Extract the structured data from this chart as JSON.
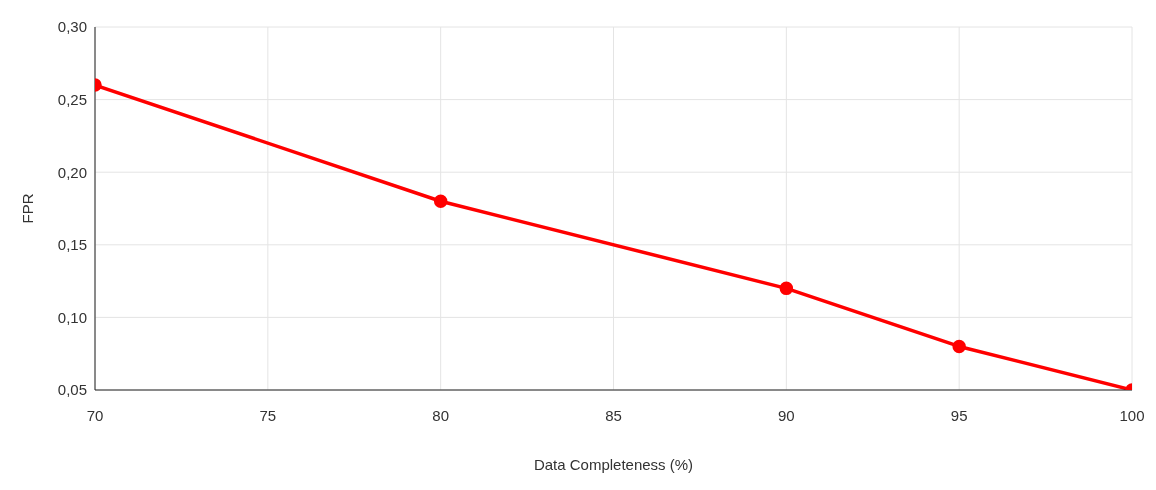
{
  "chart_data": {
    "type": "line",
    "xlabel": "Data Completeness (%)",
    "ylabel": "FPR",
    "x": [
      70,
      80,
      90,
      95,
      100
    ],
    "series": [
      {
        "color": "#ff0000",
        "values": [
          0.26,
          0.18,
          0.12,
          0.08,
          0.05
        ]
      }
    ],
    "xlim": [
      70,
      100
    ],
    "xticks": [
      70,
      75,
      80,
      85,
      90,
      95,
      100
    ],
    "ylim": [
      0.05,
      0.3
    ],
    "yticks": [
      {
        "value": 0.05,
        "label": "0,05"
      },
      {
        "value": 0.1,
        "label": "0,10"
      },
      {
        "value": 0.15,
        "label": "0,15"
      },
      {
        "value": 0.2,
        "label": "0,20"
      },
      {
        "value": 0.25,
        "label": "0,25"
      },
      {
        "value": 0.3,
        "label": "0,30"
      }
    ],
    "grid": true,
    "marker": "circle",
    "line_style": "solid",
    "legend": false
  }
}
